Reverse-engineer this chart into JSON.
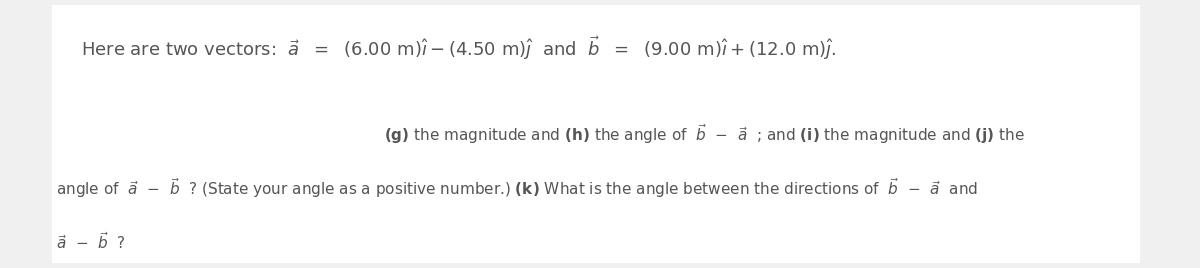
{
  "bg_color": "#f0f0f0",
  "inner_bg": "#ffffff",
  "text_color": "#555555",
  "font_size_main": 15,
  "font_size_body": 11.5,
  "figsize": [
    12.0,
    2.68
  ],
  "dpi": 100
}
